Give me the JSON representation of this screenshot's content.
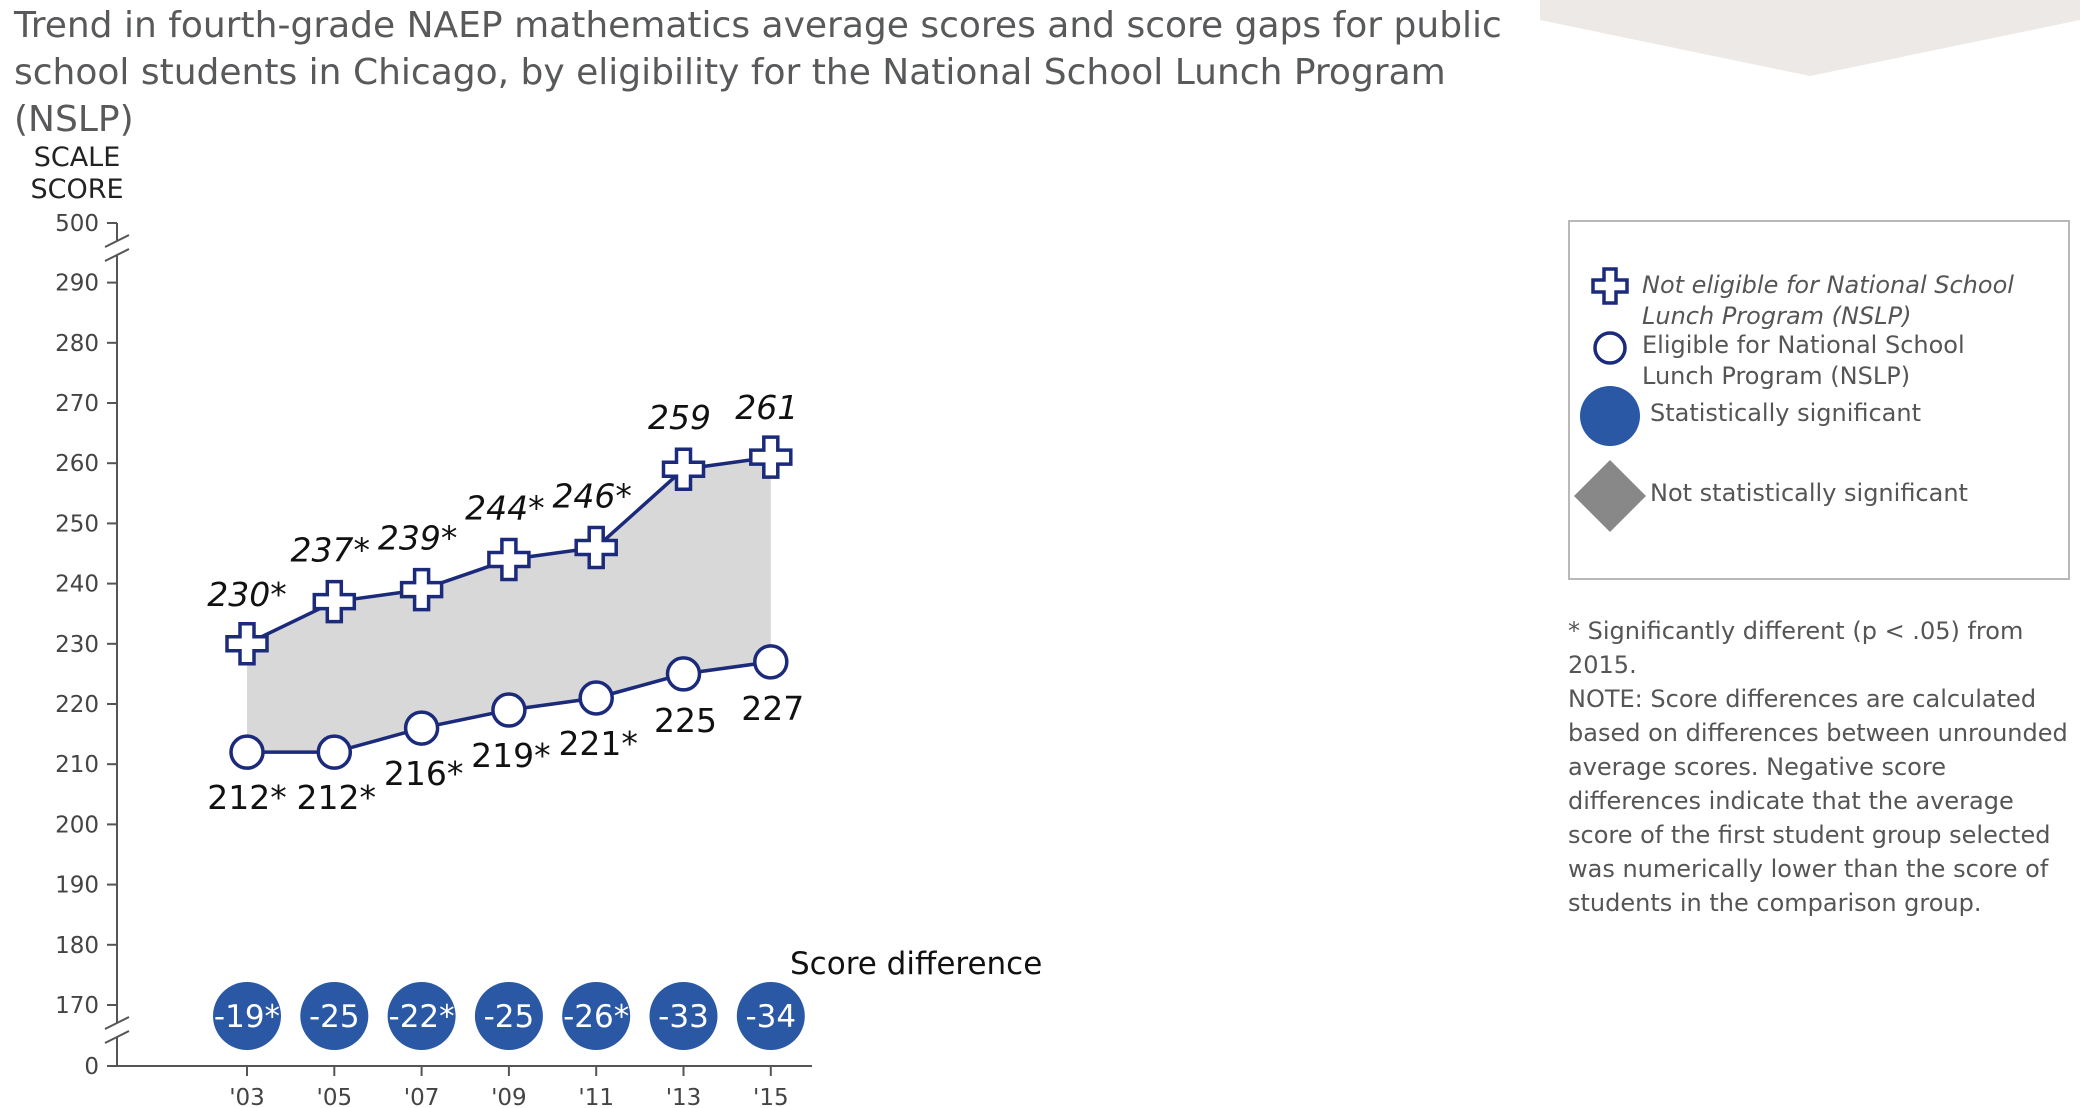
{
  "title": "Trend in fourth-grade NAEP mathematics average scores and score gaps for public school students in Chicago, by eligibility for the National School Lunch Program (NSLP)",
  "chart_data": {
    "type": "line",
    "ylabel": "SCALE SCORE",
    "y_ticks": [
      0,
      170,
      180,
      190,
      200,
      210,
      220,
      230,
      240,
      250,
      260,
      270,
      280,
      290,
      500
    ],
    "y_tick_labels": [
      "0",
      "170",
      "180",
      "190",
      "200",
      "210",
      "220",
      "230",
      "240",
      "250",
      "260",
      "270",
      "280",
      "290",
      "500"
    ],
    "ylim_broken": [
      170,
      290
    ],
    "categories": [
      "'03",
      "'05",
      "'07",
      "'09",
      "'11",
      "'13",
      "'15"
    ],
    "series": [
      {
        "name": "Not eligible for National School Lunch Program (NSLP)",
        "marker": "cross",
        "values": [
          230,
          237,
          239,
          244,
          246,
          259,
          261
        ],
        "labels": [
          "230*",
          "237*",
          "239*",
          "244*",
          "246*",
          "259",
          "261"
        ]
      },
      {
        "name": "Eligible for National School Lunch Program (NSLP)",
        "marker": "circle",
        "values": [
          212,
          212,
          216,
          219,
          221,
          225,
          227
        ],
        "labels": [
          "212*",
          "212*",
          "216*",
          "219*",
          "221*",
          "225",
          "227"
        ]
      }
    ],
    "score_difference": {
      "label": "Score difference",
      "values": [
        -19,
        -25,
        -22,
        -25,
        -26,
        -33,
        -34
      ],
      "labels": [
        "-19*",
        "-25",
        "-22*",
        "-25",
        "-26*",
        "-33",
        "-34"
      ],
      "significant": [
        true,
        true,
        true,
        true,
        true,
        true,
        true
      ]
    },
    "colors": {
      "line": "#1b2a7a",
      "gap_fill": "#d8d8d8",
      "significant": "#2a58a5",
      "not_significant": "#888888",
      "axis": "#555555"
    }
  },
  "legend": {
    "not_eligible": "Not eligible for National School Lunch Program (NSLP)",
    "eligible": "Eligible for National School Lunch Program (NSLP)",
    "significant": "Statistically significant",
    "not_significant": "Not statistically significant"
  },
  "notes": {
    "significance": "* Significantly different (p < .05) from 2015.",
    "note": "NOTE: Score differences are calculated based on differences between unrounded average scores. Negative score differences indicate that the average score of the first student group selected was numerically lower than the score of students in the comparison group."
  }
}
